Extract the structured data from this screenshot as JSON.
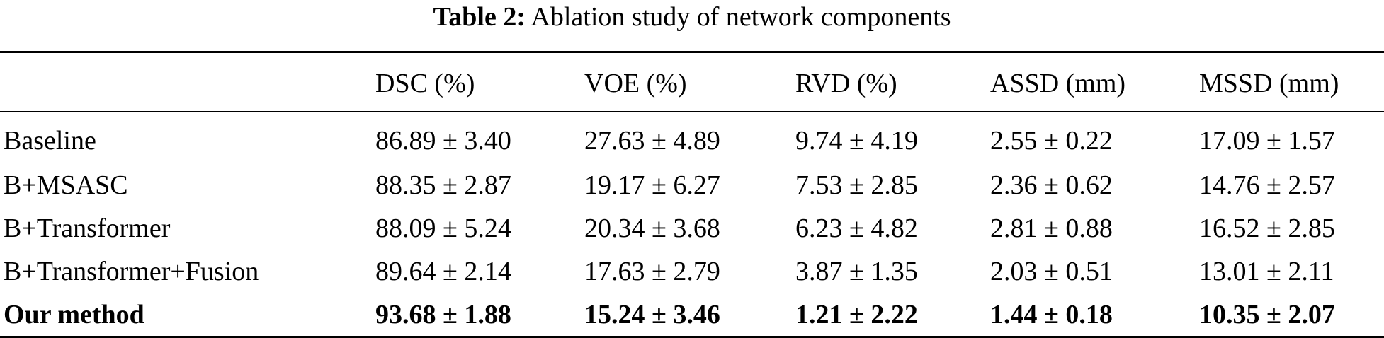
{
  "caption": {
    "label": "Table 2:",
    "text": "Ablation study of network components"
  },
  "table": {
    "headers": [
      "",
      "DSC (%)",
      "VOE (%)",
      "RVD (%)",
      "ASSD (mm)",
      "MSSD (mm)"
    ],
    "rows": [
      {
        "name": "Baseline",
        "values": [
          "86.89 ± 3.40",
          "27.63 ± 4.89",
          "9.74 ± 4.19",
          "2.55 ± 0.22",
          "17.09 ± 1.57"
        ]
      },
      {
        "name": "B+MSASC",
        "values": [
          "88.35 ± 2.87",
          "19.17 ± 6.27",
          "7.53 ± 2.85",
          "2.36 ± 0.62",
          "14.76 ± 2.57"
        ]
      },
      {
        "name": "B+Transformer",
        "values": [
          "88.09 ± 5.24",
          "20.34 ± 3.68",
          "6.23 ± 4.82",
          "2.81 ± 0.88",
          "16.52 ± 2.85"
        ]
      },
      {
        "name": "B+Transformer+Fusion",
        "values": [
          "89.64 ± 2.14",
          "17.63 ± 2.79",
          "3.87 ± 1.35",
          "2.03 ± 0.51",
          "13.01 ± 2.11"
        ]
      },
      {
        "name": "Our method",
        "values": [
          "93.68 ± 1.88",
          "15.24 ± 3.46",
          "1.21 ± 2.22",
          "1.44 ± 0.18",
          "10.35 ± 2.07"
        ]
      }
    ]
  }
}
